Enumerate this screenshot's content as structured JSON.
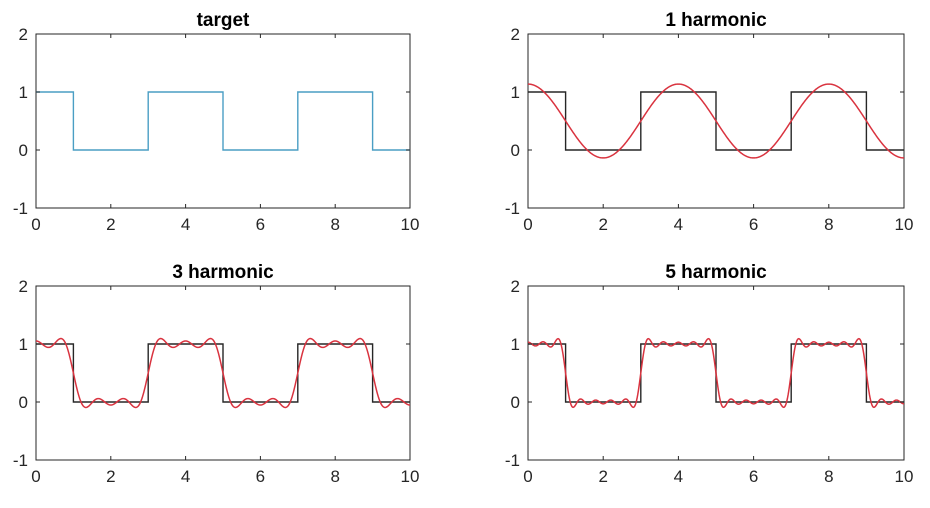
{
  "chart_data": [
    {
      "type": "line",
      "title": "target",
      "xlim": [
        0,
        10
      ],
      "ylim": [
        -1,
        2
      ],
      "xticks": [
        "0",
        "2",
        "4",
        "6",
        "8",
        "10"
      ],
      "yticks": [
        "-1",
        "0",
        "1",
        "2"
      ],
      "grid": false,
      "series": [
        {
          "kind": "square_wave",
          "period": 4,
          "high": 1,
          "low": 0,
          "high_intervals": [
            [
              0,
              1
            ],
            [
              3,
              5
            ],
            [
              7,
              9
            ]
          ],
          "color": "#4a9ec4"
        }
      ]
    },
    {
      "type": "line",
      "title": "1 harmonic",
      "xlim": [
        0,
        10
      ],
      "ylim": [
        -1,
        2
      ],
      "xticks": [
        "0",
        "2",
        "4",
        "6",
        "8",
        "10"
      ],
      "yticks": [
        "-1",
        "0",
        "1",
        "2"
      ],
      "grid": false,
      "series": [
        {
          "kind": "square_wave",
          "period": 4,
          "high": 1,
          "low": 0,
          "high_intervals": [
            [
              0,
              1
            ],
            [
              3,
              5
            ],
            [
              7,
              9
            ]
          ],
          "color": "#262626"
        },
        {
          "kind": "fourier_partial_sum",
          "harmonics": 1,
          "period": 4,
          "peak_x": 0,
          "color": "#d9333f"
        }
      ]
    },
    {
      "type": "line",
      "title": "3 harmonic",
      "xlim": [
        0,
        10
      ],
      "ylim": [
        -1,
        2
      ],
      "xticks": [
        "0",
        "2",
        "4",
        "6",
        "8",
        "10"
      ],
      "yticks": [
        "-1",
        "0",
        "1",
        "2"
      ],
      "grid": false,
      "series": [
        {
          "kind": "square_wave",
          "period": 4,
          "high": 1,
          "low": 0,
          "high_intervals": [
            [
              0,
              1
            ],
            [
              3,
              5
            ],
            [
              7,
              9
            ]
          ],
          "color": "#262626"
        },
        {
          "kind": "fourier_partial_sum",
          "harmonics": 3,
          "period": 4,
          "peak_x": 0,
          "color": "#d9333f"
        }
      ]
    },
    {
      "type": "line",
      "title": "5 harmonic",
      "xlim": [
        0,
        10
      ],
      "ylim": [
        -1,
        2
      ],
      "xticks": [
        "0",
        "2",
        "4",
        "6",
        "8",
        "10"
      ],
      "yticks": [
        "-1",
        "0",
        "1",
        "2"
      ],
      "grid": false,
      "series": [
        {
          "kind": "square_wave",
          "period": 4,
          "high": 1,
          "low": 0,
          "high_intervals": [
            [
              0,
              1
            ],
            [
              3,
              5
            ],
            [
              7,
              9
            ]
          ],
          "color": "#262626"
        },
        {
          "kind": "fourier_partial_sum",
          "harmonics": 5,
          "period": 4,
          "peak_x": 0,
          "color": "#d9333f"
        }
      ]
    }
  ]
}
